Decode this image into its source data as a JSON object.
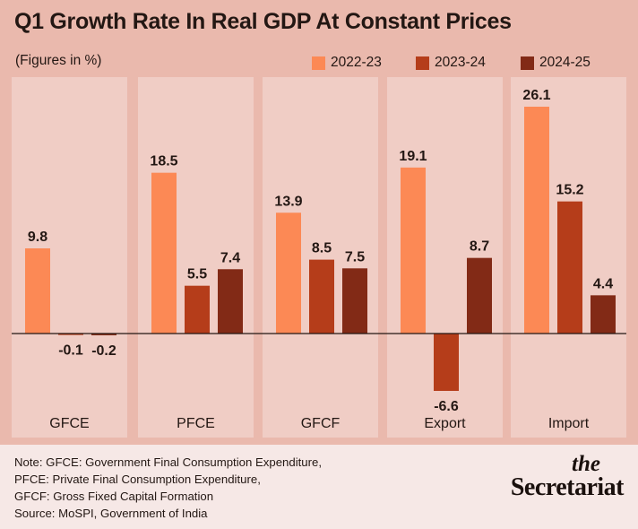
{
  "header": {
    "title": "Q1 Growth Rate In Real GDP At Constant Prices",
    "subtitle": "(Figures in %)"
  },
  "chart_data": {
    "type": "bar",
    "title": "Q1 Growth Rate In Real GDP At Constant Prices",
    "subtitle": "(Figures in %)",
    "categories": [
      "GFCE",
      "PFCE",
      "GFCF",
      "Export",
      "Import"
    ],
    "series": [
      {
        "name": "2022-23",
        "color": "#fc8955",
        "values": [
          9.8,
          18.5,
          13.9,
          19.1,
          26.1
        ]
      },
      {
        "name": "2023-24",
        "color": "#b53d1a",
        "values": [
          -0.1,
          5.5,
          8.5,
          -6.6,
          15.2
        ]
      },
      {
        "name": "2024-25",
        "color": "#822a16",
        "values": [
          -0.2,
          7.4,
          7.5,
          8.7,
          4.4
        ]
      }
    ],
    "data_labels": [
      [
        "9.8",
        "-0.1",
        "-0.2"
      ],
      [
        "18.5",
        "5.5",
        "7.4"
      ],
      [
        "13.9",
        "8.5",
        "7.5"
      ],
      [
        "19.1",
        "-6.6",
        "8.7"
      ],
      [
        "26.1",
        "15.2",
        "4.4"
      ]
    ],
    "legend_position": "top-right",
    "grid": false
  },
  "colors": {
    "background": "#eab9ad",
    "panel": "#f0cdc5",
    "footer": "#f6e8e6",
    "text": "#231713",
    "axis": "#231713"
  },
  "footer": {
    "notes": [
      "Note: GFCE: Government Final Consumption Expenditure,",
      "PFCE: Private Final Consumption Expenditure,",
      "GFCF: Gross Fixed Capital Formation",
      "Source: MoSPI, Government of India"
    ],
    "brand_the": "the",
    "brand_name": "Secretariat"
  }
}
